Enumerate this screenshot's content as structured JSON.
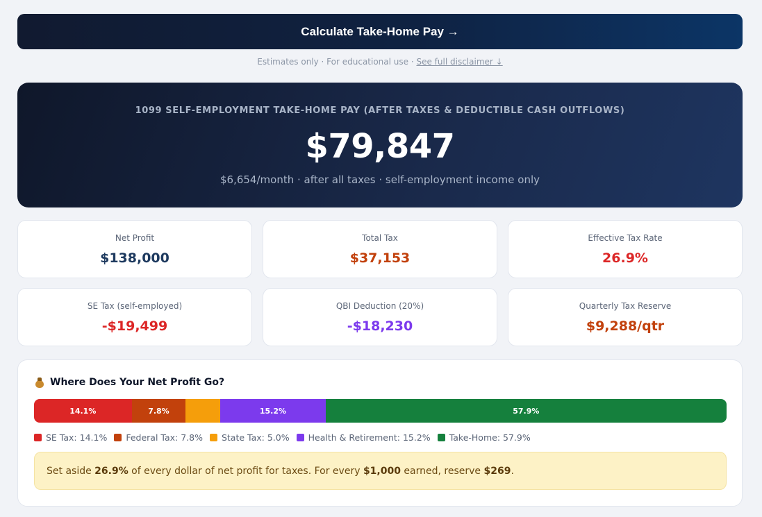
{
  "button": {
    "label": "Calculate Take-Home Pay →"
  },
  "disclaimer": {
    "text": "Estimates only · For educational use · ",
    "link": "See full disclaimer ↓"
  },
  "hero": {
    "label": "1099 SELF-EMPLOYMENT TAKE-HOME PAY (AFTER TAXES & DEDUCTIBLE CASH OUTFLOWS)",
    "amount": "$79,847",
    "sub": "$6,654/month · after all taxes · self-employment income only"
  },
  "cards": [
    {
      "label": "Net Profit",
      "value": "$138,000",
      "color": "#1e3a5f"
    },
    {
      "label": "Total Tax",
      "value": "$37,153",
      "color": "#c2410c"
    },
    {
      "label": "Effective Tax Rate",
      "value": "26.9%",
      "color": "#dc2626"
    },
    {
      "label": "SE Tax (self-employed)",
      "value": "-$19,499",
      "color": "#dc2626"
    },
    {
      "label": "QBI Deduction (20%)",
      "value": "-$18,230",
      "color": "#7c3aed"
    },
    {
      "label": "Quarterly Tax Reserve",
      "value": "$9,288/qtr",
      "color": "#c2410c"
    }
  ],
  "breakdown": {
    "title": "Where Does Your Net Profit Go?",
    "icon": "money-bag-icon",
    "segments": [
      {
        "label": "14.1%",
        "percent": 14.1,
        "color": "#dc2626"
      },
      {
        "label": "7.8%",
        "percent": 7.8,
        "color": "#c2410c"
      },
      {
        "label": "",
        "percent": 5.0,
        "color": "#f59e0b"
      },
      {
        "label": "15.2%",
        "percent": 15.2,
        "color": "#7c3aed"
      },
      {
        "label": "57.9%",
        "percent": 57.9,
        "color": "#15803d"
      }
    ],
    "legend": [
      {
        "label": "SE Tax: 14.1%",
        "color": "#dc2626"
      },
      {
        "label": "Federal Tax: 7.8%",
        "color": "#c2410c"
      },
      {
        "label": "State Tax: 5.0%",
        "color": "#f59e0b"
      },
      {
        "label": "Health & Retirement: 15.2%",
        "color": "#7c3aed"
      },
      {
        "label": "Take-Home: 57.9%",
        "color": "#15803d"
      }
    ],
    "note": {
      "t1": "Set aside ",
      "rate": "26.9%",
      "t2": " of every dollar of net profit for taxes. For every ",
      "earned": "$1,000",
      "t3": " earned, reserve ",
      "reserve": "$269",
      "t4": "."
    }
  }
}
